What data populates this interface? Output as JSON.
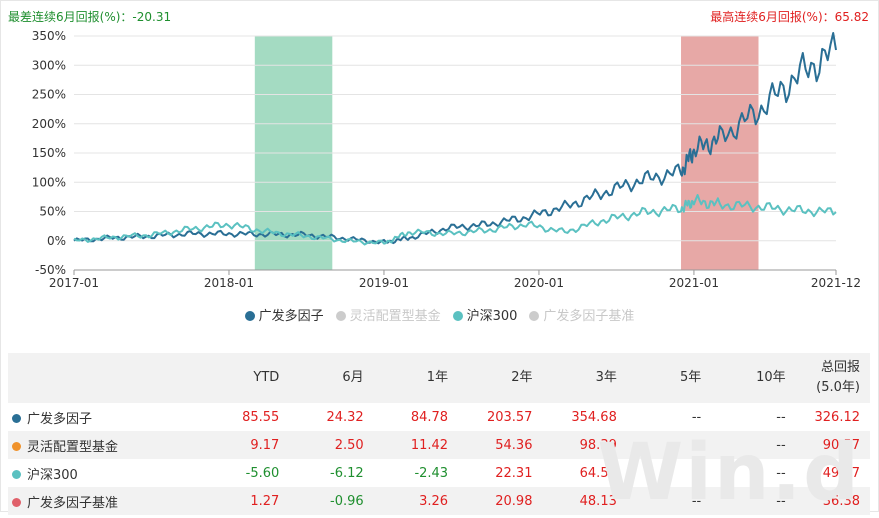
{
  "stats": {
    "worst_label": "最差连续6月回报(%)：-20.31",
    "best_label": "最高连续6月回报(%)：65.82"
  },
  "chart_data": {
    "type": "line",
    "x_tick_labels": [
      "2017-01",
      "2018-01",
      "2019-01",
      "2020-01",
      "2021-01",
      "2021-12"
    ],
    "y_tick_labels": [
      "350%",
      "300%",
      "250%",
      "200%",
      "150%",
      "100%",
      "50%",
      "0%",
      "-50%"
    ],
    "ylim": [
      -50,
      350
    ],
    "x_range": [
      "2017-01",
      "2021-12"
    ],
    "highlight_worst": {
      "start": "2018-03",
      "end": "2018-09",
      "color": "#9fd9bf"
    },
    "highlight_best": {
      "start": "2020-12",
      "end": "2021-06",
      "color": "#e6a3a1"
    },
    "series": [
      {
        "name": "广发多因子",
        "color": "#2a6f95",
        "x": [
          "2017-01",
          "2017-04",
          "2017-07",
          "2017-10",
          "2018-01",
          "2018-04",
          "2018-07",
          "2018-10",
          "2019-01",
          "2019-03",
          "2019-06",
          "2019-09",
          "2019-12",
          "2020-03",
          "2020-06",
          "2020-09",
          "2020-12",
          "2021-01",
          "2021-03",
          "2021-06",
          "2021-09",
          "2021-12"
        ],
        "values": [
          0,
          5,
          8,
          12,
          12,
          11,
          10,
          4,
          -3,
          5,
          22,
          28,
          40,
          58,
          82,
          104,
          118,
          155,
          175,
          222,
          282,
          326
        ]
      },
      {
        "name": "沪深300",
        "color": "#5bc1c1",
        "x": [
          "2017-01",
          "2017-04",
          "2017-07",
          "2017-10",
          "2018-01",
          "2018-04",
          "2018-07",
          "2018-10",
          "2019-01",
          "2019-03",
          "2019-06",
          "2019-09",
          "2019-12",
          "2020-03",
          "2020-06",
          "2020-09",
          "2020-12",
          "2021-01",
          "2021-03",
          "2021-06",
          "2021-09",
          "2021-12"
        ],
        "values": [
          0,
          6,
          10,
          20,
          28,
          15,
          8,
          0,
          -4,
          15,
          12,
          18,
          28,
          15,
          35,
          48,
          55,
          68,
          62,
          58,
          52,
          49
        ]
      }
    ],
    "legend_entries": [
      {
        "name": "广发多因子",
        "color": "#2a6f95",
        "active": true
      },
      {
        "name": "灵活配置型基金",
        "color": "#cccccc",
        "active": false
      },
      {
        "name": "沪深300",
        "color": "#5bc1c1",
        "active": true
      },
      {
        "name": "广发多因子基准",
        "color": "#cccccc",
        "active": false
      }
    ]
  },
  "table": {
    "headers": [
      "",
      "YTD",
      "6月",
      "1年",
      "2年",
      "3年",
      "5年",
      "10年",
      "总回报"
    ],
    "header_sub": "(5.0年)",
    "rows": [
      {
        "name": "广发多因子",
        "dot": "#2a6f95",
        "cells": [
          "85.55",
          "24.32",
          "84.78",
          "203.57",
          "354.68",
          "--",
          "--",
          "326.12"
        ]
      },
      {
        "name": "灵活配置型基金",
        "dot": "#f0922b",
        "cells": [
          "9.17",
          "2.50",
          "11.42",
          "54.36",
          "98.39",
          "--",
          "--",
          "90.57"
        ]
      },
      {
        "name": "沪深300",
        "dot": "#5bc1c1",
        "cells": [
          "-5.60",
          "-6.12",
          "-2.43",
          "22.31",
          "64.50",
          "--",
          "--",
          "49.17"
        ]
      },
      {
        "name": "广发多因子基准",
        "dot": "#e0606a",
        "cells": [
          "1.27",
          "-0.96",
          "3.26",
          "20.98",
          "48.13",
          "--",
          "--",
          "36.38"
        ]
      }
    ]
  },
  "watermark": "Win.d"
}
